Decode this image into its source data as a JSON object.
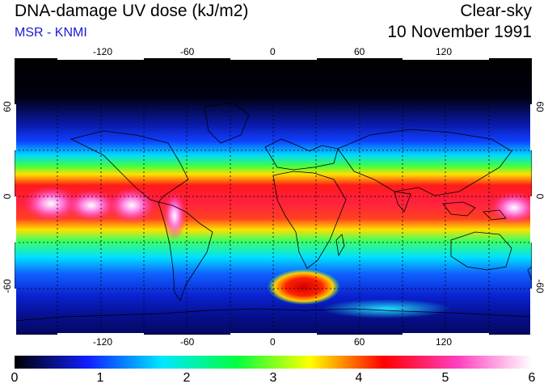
{
  "header": {
    "title": "DNA-damage UV dose (kJ/m2)",
    "source": "MSR - KNMI",
    "sky_condition": "Clear-sky",
    "date": "10 November 1991"
  },
  "map": {
    "projection": "equirectangular",
    "lon_range": [
      -180,
      180
    ],
    "lat_range": [
      -90,
      90
    ],
    "lon_ticks": [
      "-120",
      "-60",
      "0",
      "60",
      "120"
    ],
    "lat_ticks_left": [
      "60",
      "0",
      "-60"
    ],
    "lat_ticks_right": [
      "60",
      "0",
      "-60"
    ],
    "gridlines": "dotted, every 30 degrees",
    "colors": {
      "min": "#000000",
      "low": "#1a2cff",
      "mid": "#00e6ff",
      "midhigh": "#7cff00",
      "high": "#ffff00",
      "peak": "#ff0030",
      "extreme": "#ff33cc",
      "max": "#ffffff"
    }
  },
  "colorbar": {
    "labels": [
      "0",
      "1",
      "2",
      "3",
      "4",
      "5",
      "6"
    ],
    "min": 0,
    "max": 6,
    "stops": [
      "#000000",
      "#1020ff",
      "#00e8ff",
      "#00ff40",
      "#ffff00",
      "#ff0000",
      "#ff40c0",
      "#ffffff"
    ]
  }
}
